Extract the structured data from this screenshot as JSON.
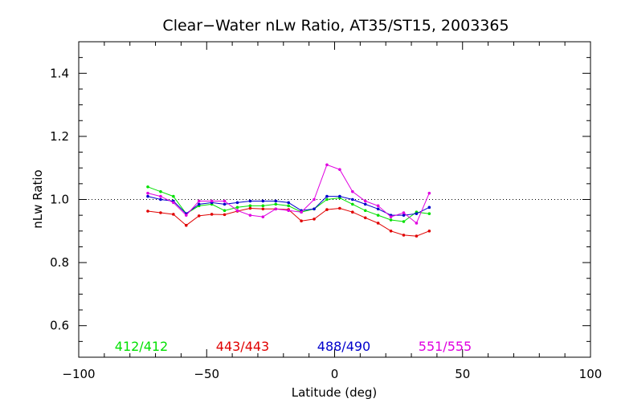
{
  "chart_data": {
    "type": "line",
    "title": "Clear−Water nLw Ratio, AT35/ST15, 2003365",
    "xlabel": "Latitude (deg)",
    "ylabel": "nLw Ratio",
    "xlim": [
      -100,
      100
    ],
    "ylim": [
      0.5,
      1.5
    ],
    "xticks": [
      -100,
      -50,
      0,
      50,
      100
    ],
    "xtick_labels": [
      "−100",
      "−50",
      "0",
      "50",
      "100"
    ],
    "yticks": [
      0.6,
      0.8,
      1.0,
      1.2,
      1.4
    ],
    "ytick_labels": [
      "0.6",
      "0.8",
      "1.0",
      "1.2",
      "1.4"
    ],
    "reference_line": 1.0,
    "grid": false,
    "legend_position": "bottom-inside",
    "series": [
      {
        "name": "412/412",
        "color": "#00e000",
        "x": [
          -73,
          -68,
          -63,
          -58,
          -53,
          -48,
          -43,
          -38,
          -33,
          -28,
          -23,
          -18,
          -13,
          -8,
          -3,
          2,
          7,
          12,
          17,
          22,
          27,
          32,
          37
        ],
        "y": [
          1.04,
          1.025,
          1.01,
          0.955,
          0.98,
          0.985,
          0.965,
          0.975,
          0.98,
          0.98,
          0.985,
          0.98,
          0.96,
          0.97,
          1.0,
          1.005,
          0.985,
          0.965,
          0.95,
          0.935,
          0.93,
          0.96,
          0.955
        ]
      },
      {
        "name": "443/443",
        "color": "#e00000",
        "x": [
          -73,
          -68,
          -63,
          -58,
          -53,
          -48,
          -43,
          -38,
          -33,
          -28,
          -23,
          -18,
          -13,
          -8,
          -3,
          2,
          7,
          12,
          17,
          22,
          27,
          32,
          37
        ],
        "y": [
          0.963,
          0.958,
          0.953,
          0.918,
          0.948,
          0.953,
          0.952,
          0.963,
          0.972,
          0.97,
          0.97,
          0.968,
          0.932,
          0.938,
          0.968,
          0.972,
          0.96,
          0.942,
          0.925,
          0.9,
          0.887,
          0.884,
          0.9
        ]
      },
      {
        "name": "488/490",
        "color": "#0000cc",
        "x": [
          -73,
          -68,
          -63,
          -58,
          -53,
          -48,
          -43,
          -38,
          -33,
          -28,
          -23,
          -18,
          -13,
          -8,
          -3,
          2,
          7,
          12,
          17,
          22,
          27,
          32,
          37
        ],
        "y": [
          1.01,
          1.0,
          0.995,
          0.955,
          0.985,
          0.99,
          0.985,
          0.99,
          0.995,
          0.995,
          0.995,
          0.99,
          0.965,
          0.97,
          1.01,
          1.01,
          1.0,
          0.985,
          0.97,
          0.95,
          0.95,
          0.955,
          0.975
        ]
      },
      {
        "name": "551/555",
        "color": "#e000e0",
        "x": [
          -73,
          -68,
          -63,
          -58,
          -53,
          -48,
          -43,
          -38,
          -33,
          -28,
          -23,
          -18,
          -13,
          -8,
          -3,
          2,
          7,
          12,
          17,
          22,
          27,
          32,
          37
        ],
        "y": [
          1.02,
          1.01,
          0.99,
          0.95,
          0.995,
          0.995,
          0.995,
          0.965,
          0.95,
          0.945,
          0.97,
          0.965,
          0.96,
          1.0,
          1.11,
          1.095,
          1.025,
          0.995,
          0.98,
          0.945,
          0.958,
          0.925,
          1.02
        ]
      }
    ]
  }
}
